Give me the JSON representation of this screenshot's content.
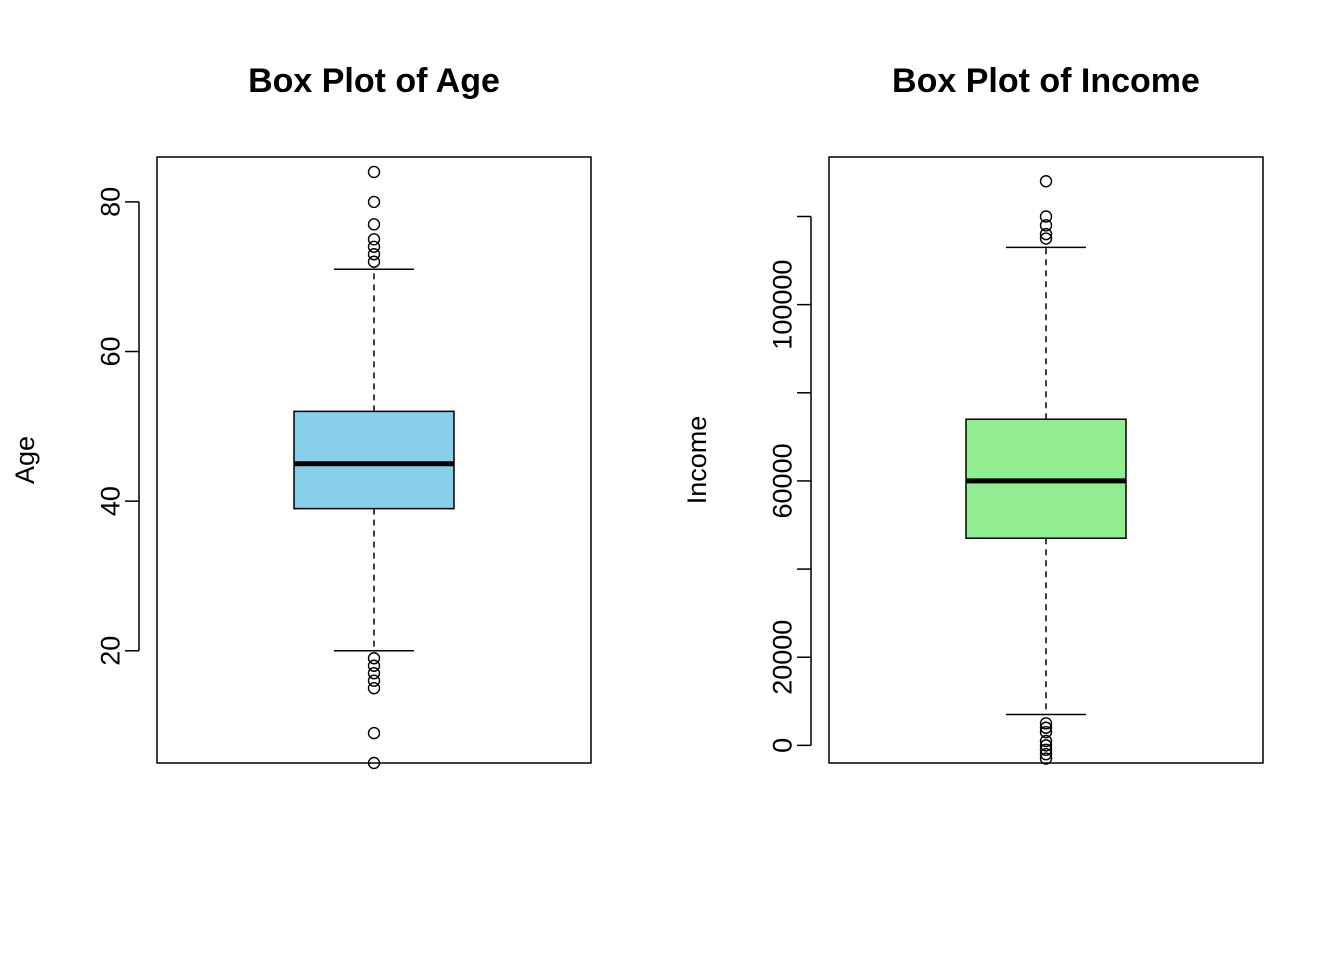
{
  "chart_data": [
    {
      "type": "boxplot",
      "title": "Box Plot of Age",
      "xlabel": "",
      "ylabel": "Age",
      "ylim": [
        5,
        86
      ],
      "yticks": [
        20,
        40,
        60,
        80
      ],
      "ytick_labels": [
        "20",
        "40",
        "60",
        "80"
      ],
      "color": "#87CEEB",
      "box": {
        "lower_whisker": 20,
        "q1": 39,
        "median": 45,
        "q3": 52,
        "upper_whisker": 71
      },
      "outliers": [
        84,
        80,
        77,
        75,
        74,
        73,
        72,
        19,
        18,
        17,
        16,
        15,
        9,
        5
      ]
    },
    {
      "type": "boxplot",
      "title": "Box Plot of Income",
      "xlabel": "",
      "ylabel": "Income",
      "ylim": [
        -4000,
        133500
      ],
      "yticks": [
        0,
        20000,
        40000,
        60000,
        80000,
        100000,
        120000
      ],
      "ytick_labels": [
        "0",
        "20000",
        "",
        "60000",
        "",
        "100000",
        ""
      ],
      "color": "#90EE90",
      "box": {
        "lower_whisker": 7000,
        "q1": 47000,
        "median": 60000,
        "q3": 74000,
        "upper_whisker": 113000
      },
      "outliers": [
        128000,
        120000,
        118000,
        116000,
        115000,
        5000,
        4000,
        3000,
        1000,
        0,
        -1000,
        -2000,
        -3000
      ]
    }
  ]
}
